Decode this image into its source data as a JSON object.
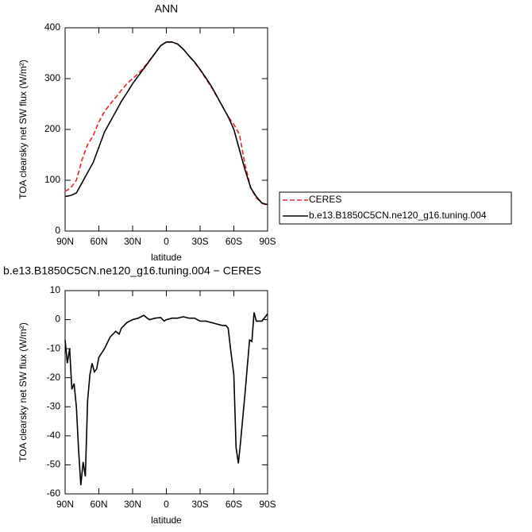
{
  "chart_data": [
    {
      "type": "line",
      "title": "ANN",
      "x_label": "latitude",
      "y_label": "TOA clearsky net SW flux (W/m²)",
      "x": [
        90,
        85,
        80,
        75,
        70,
        65,
        60,
        55,
        50,
        45,
        40,
        35,
        30,
        25,
        20,
        15,
        10,
        5,
        0,
        -5,
        -10,
        -15,
        -20,
        -25,
        -30,
        -35,
        -40,
        -45,
        -50,
        -55,
        -60,
        -65,
        -70,
        -75,
        -80,
        -85,
        -90
      ],
      "series": [
        {
          "name": "CERES",
          "color": "#e8262b",
          "dash": true,
          "values": [
            78,
            85,
            100,
            140,
            170,
            188,
            215,
            235,
            250,
            263,
            277,
            290,
            300,
            310,
            322,
            336,
            350,
            365,
            372,
            372,
            368,
            358,
            345,
            332,
            317,
            300,
            283,
            264,
            245,
            225,
            210,
            190,
            130,
            85,
            65,
            55,
            50
          ]
        },
        {
          "name": "b.e13.B1850C5CN.ne120_g16.tuning.004",
          "color": "#000000",
          "dash": false,
          "values": [
            68,
            70,
            75,
            95,
            115,
            135,
            165,
            195,
            215,
            235,
            255,
            272,
            290,
            305,
            320,
            335,
            350,
            365,
            372,
            372,
            368,
            358,
            345,
            333,
            318,
            302,
            285,
            265,
            245,
            225,
            200,
            160,
            120,
            85,
            68,
            55,
            52
          ]
        }
      ],
      "xlim": [
        90,
        -90
      ],
      "xticks": [
        {
          "value": 90,
          "label": "90N"
        },
        {
          "value": 60,
          "label": "60N"
        },
        {
          "value": 30,
          "label": "30N"
        },
        0,
        {
          "value": -30,
          "label": "30S"
        },
        {
          "value": -60,
          "label": "60S"
        },
        {
          "value": -90,
          "label": "90S"
        }
      ],
      "ylim": [
        0,
        400
      ],
      "yticks": [
        0,
        100,
        200,
        300,
        400
      ],
      "legend": "outside-right"
    },
    {
      "type": "line",
      "title": "b.e13.B1850C5CN.ne120_g16.tuning.004 − CERES",
      "x_label": "latitude",
      "y_label": "TOA clearsky net SW flux (W/m²)",
      "x": [
        90,
        88,
        86,
        84,
        82,
        80,
        78,
        76,
        74,
        72,
        70,
        68,
        66,
        64,
        62,
        60,
        55,
        50,
        45,
        42,
        40,
        35,
        30,
        25,
        20,
        17,
        15,
        10,
        5,
        2,
        0,
        -5,
        -10,
        -15,
        -20,
        -25,
        -30,
        -35,
        -40,
        -45,
        -50,
        -53,
        -55,
        -57,
        -60,
        -62,
        -64,
        -66,
        -70,
        -74,
        -76,
        -78,
        -80,
        -85,
        -90
      ],
      "series": [
        {
          "name": null,
          "color": "#000000",
          "dash": false,
          "values": [
            -7,
            -15,
            -10,
            -24,
            -22,
            -30,
            -45,
            -57,
            -49,
            -54,
            -28,
            -19,
            -15,
            -18,
            -17,
            -13,
            -10,
            -6,
            -4,
            -5,
            -3,
            -1,
            0,
            0.5,
            1.5,
            0.5,
            0,
            0.5,
            0.7,
            -0.5,
            0,
            0.5,
            0.5,
            1,
            0.5,
            0.5,
            -0.5,
            -0.5,
            -1,
            -1.5,
            -2,
            -2,
            -3,
            -10,
            -19,
            -44,
            -49.5,
            -42,
            -25,
            -7,
            -7.5,
            2.5,
            -0.5,
            -0.5,
            2
          ]
        }
      ],
      "xlim": [
        90,
        -90
      ],
      "xticks": [
        {
          "value": 90,
          "label": "90N"
        },
        {
          "value": 60,
          "label": "60N"
        },
        {
          "value": 30,
          "label": "30N"
        },
        0,
        {
          "value": -30,
          "label": "30S"
        },
        {
          "value": -60,
          "label": "60S"
        },
        {
          "value": -90,
          "label": "90S"
        }
      ],
      "ylim": [
        -60,
        10
      ],
      "yticks": [
        -60,
        -50,
        -40,
        -30,
        -20,
        -10,
        0,
        10
      ]
    }
  ]
}
